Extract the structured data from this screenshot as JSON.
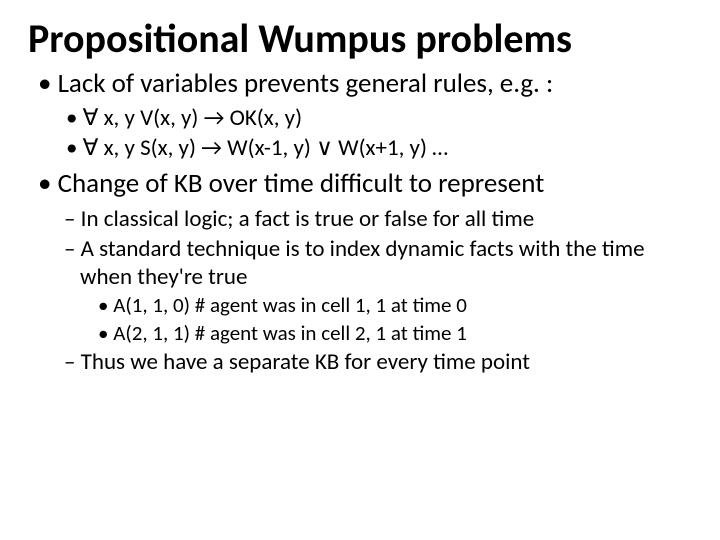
{
  "title": "Propositional Wumpus problems",
  "p1": "Lack of variables prevents general rules, e.g. :",
  "p1a": "∀ x, y V(x, y) → OK(x, y)",
  "p1b": "∀ x, y S(x, y) → W(x-1, y) ∨ W(x+1, y) …",
  "p2": "Change of KB over time difficult to represent",
  "p2a": "In classical logic; a fact is true or false for all time",
  "p2b": "A standard technique is to index dynamic facts with the time when they're true",
  "p2b1": "A(1, 1, 0)   # agent was in cell 1, 1 at time 0",
  "p2b2": "A(2, 1, 1)  # agent was in cell 2, 1 at time 1",
  "p2c": "Thus we have a separate KB for every time point"
}
